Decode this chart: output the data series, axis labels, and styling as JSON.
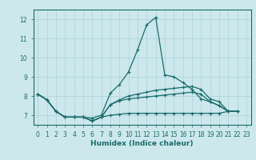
{
  "title": "",
  "xlabel": "Humidex (Indice chaleur)",
  "xlim": [
    -0.5,
    23.5
  ],
  "ylim": [
    6.5,
    12.5
  ],
  "yticks": [
    7,
    8,
    9,
    10,
    11,
    12
  ],
  "xticks": [
    0,
    1,
    2,
    3,
    4,
    5,
    6,
    7,
    8,
    9,
    10,
    11,
    12,
    13,
    14,
    15,
    16,
    17,
    18,
    19,
    20,
    21,
    22,
    23
  ],
  "bg_color": "#cce8ec",
  "grid_color": "#aad0d8",
  "line_color": "#1a6b6b",
  "line1": [
    8.1,
    7.8,
    7.2,
    6.9,
    6.9,
    6.9,
    6.85,
    7.0,
    8.15,
    8.6,
    9.25,
    10.4,
    11.7,
    12.1,
    9.1,
    9.0,
    8.7,
    8.35,
    7.85,
    7.7,
    7.5,
    7.2,
    7.2
  ],
  "line2": [
    8.1,
    7.8,
    7.2,
    6.9,
    6.9,
    6.9,
    6.7,
    6.9,
    7.55,
    7.8,
    8.0,
    8.1,
    8.2,
    8.3,
    8.35,
    8.4,
    8.45,
    8.5,
    8.35,
    7.85,
    7.7,
    7.2,
    7.2
  ],
  "line3": [
    8.1,
    7.8,
    7.2,
    6.9,
    6.9,
    6.9,
    6.7,
    6.9,
    7.55,
    7.75,
    7.85,
    7.9,
    7.95,
    8.0,
    8.05,
    8.1,
    8.15,
    8.2,
    8.1,
    7.7,
    7.5,
    7.2,
    7.2
  ],
  "line4": [
    8.1,
    7.8,
    7.2,
    6.9,
    6.9,
    6.9,
    6.7,
    6.9,
    7.0,
    7.05,
    7.1,
    7.1,
    7.1,
    7.1,
    7.1,
    7.1,
    7.1,
    7.1,
    7.1,
    7.1,
    7.1,
    7.2,
    7.2
  ],
  "tick_fontsize": 5.5,
  "xlabel_fontsize": 6.5,
  "lw": 0.9,
  "marker_size": 3
}
